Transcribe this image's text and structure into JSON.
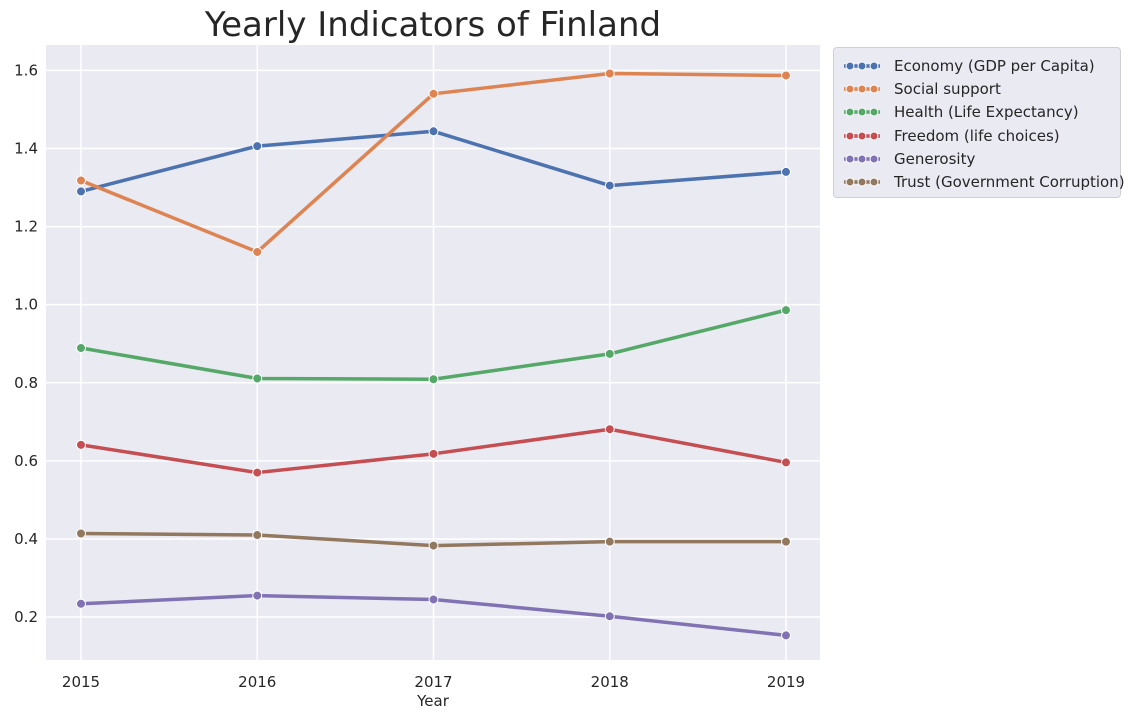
{
  "chart_data": {
    "type": "line",
    "title": "Yearly Indicators of Finland",
    "xlabel": "Year",
    "ylabel": "",
    "x": [
      "2015",
      "2016",
      "2017",
      "2018",
      "2019"
    ],
    "ylim": [
      0.09,
      1.665
    ],
    "yticks": [
      "0.2",
      "0.4",
      "0.6",
      "0.8",
      "1.0",
      "1.2",
      "1.4",
      "1.6"
    ],
    "grid": true,
    "legend_position": "outside-top-right",
    "series": [
      {
        "name": "Economy (GDP per Capita)",
        "color": "#4c72b0",
        "values": [
          1.29,
          1.406,
          1.444,
          1.305,
          1.34
        ]
      },
      {
        "name": "Social support",
        "color": "#dd8452",
        "values": [
          1.318,
          1.135,
          1.54,
          1.592,
          1.587
        ]
      },
      {
        "name": "Health (Life Expectancy)",
        "color": "#55a868",
        "values": [
          0.889,
          0.811,
          0.809,
          0.874,
          0.986
        ]
      },
      {
        "name": "Freedom (life choices)",
        "color": "#c44e52",
        "values": [
          0.641,
          0.57,
          0.618,
          0.681,
          0.596
        ]
      },
      {
        "name": "Generosity",
        "color": "#8172b3",
        "values": [
          0.234,
          0.255,
          0.245,
          0.202,
          0.153
        ]
      },
      {
        "name": "Trust (Government Corruption)",
        "color": "#937860",
        "values": [
          0.414,
          0.41,
          0.383,
          0.393,
          0.393
        ]
      }
    ]
  },
  "colors": {
    "plot_background": "#eaeaf2",
    "grid": "#ffffff",
    "text": "#262626"
  }
}
